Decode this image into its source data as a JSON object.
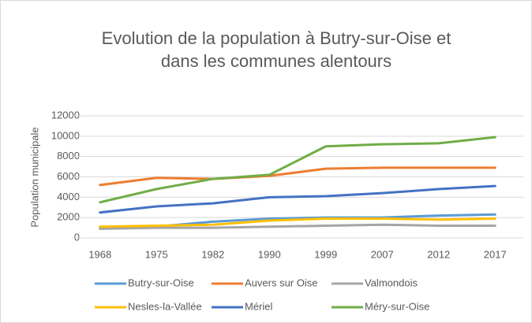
{
  "chart_data": {
    "type": "line",
    "title": [
      "Evolution de la  population à Butry-sur-Oise et",
      "dans les communes alentours"
    ],
    "y_label": "Population municipale",
    "categories": [
      "1968",
      "1975",
      "1982",
      "1990",
      "1999",
      "2007",
      "2012",
      "2017"
    ],
    "series": [
      {
        "name": "Butry-sur-Oise",
        "color": "#5b9bd5",
        "values": [
          1000,
          1100,
          1600,
          1900,
          2000,
          2000,
          2200,
          2300
        ]
      },
      {
        "name": "Auvers sur Oise",
        "color": "#ed7d31",
        "values": [
          5200,
          5900,
          5800,
          6100,
          6800,
          6900,
          6900,
          6900
        ]
      },
      {
        "name": "Valmondois",
        "color": "#a5a5a5",
        "values": [
          900,
          1000,
          1000,
          1100,
          1200,
          1300,
          1200,
          1200
        ]
      },
      {
        "name": "Nesles-la-Vallée",
        "color": "#ffc000",
        "values": [
          1100,
          1200,
          1300,
          1700,
          1900,
          1900,
          1800,
          1900
        ]
      },
      {
        "name": "Mériel",
        "color": "#4472c4",
        "values": [
          2500,
          3100,
          3400,
          4000,
          4100,
          4400,
          4800,
          5100
        ]
      },
      {
        "name": "Méry-sur-Oise",
        "color": "#70ad47",
        "values": [
          3500,
          4800,
          5800,
          6200,
          9000,
          9200,
          9300,
          9900
        ]
      }
    ],
    "ylim": [
      0,
      12000
    ],
    "yticks": [
      0,
      2000,
      4000,
      6000,
      8000,
      10000,
      12000
    ],
    "grid": true,
    "legend": "bottom"
  }
}
